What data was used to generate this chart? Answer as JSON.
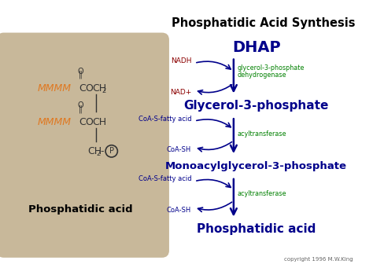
{
  "title": "Phosphatidic Acid Synthesis",
  "title_color": "#000000",
  "white_bg": "#ffffff",
  "box_bg": "#c8b89a",
  "box_border": "#b0a08a",
  "pathway_nodes": [
    "DHAP",
    "Glycerol-3-phosphate",
    "Monoacylglycerol-3-phosphate",
    "Phosphatidic acid"
  ],
  "node_color": "#00008b",
  "arrow_color": "#00008b",
  "nadh_color": "#8b0000",
  "coa_color": "#00008b",
  "enzyme_color": "#008000",
  "struct_color": "#333333",
  "fatty_color": "#e07820",
  "copyright": "copyright 1996 M.W.King",
  "copyright_color": "#666666"
}
